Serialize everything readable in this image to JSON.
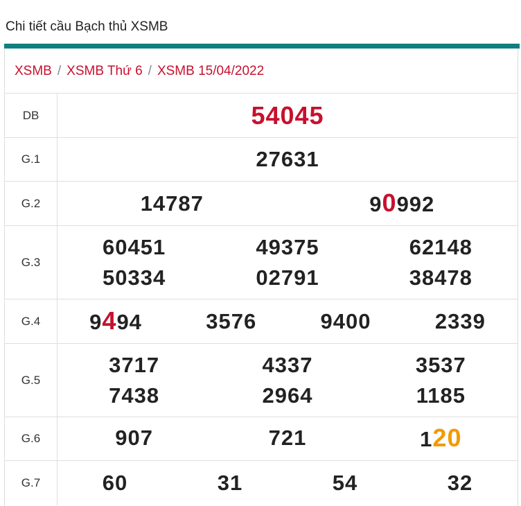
{
  "page_title": "Chi tiết cầu Bạch thủ XSMB",
  "breadcrumb": {
    "items": [
      "XSMB",
      "XSMB Thứ 6",
      "XSMB 15/04/2022"
    ],
    "separator": "/"
  },
  "colors": {
    "accent_bar": "#0f7f7f",
    "highlight_red": "#c8102e",
    "highlight_orange": "#f29a00"
  },
  "prizes": {
    "db": {
      "label": "DB",
      "numbers": [
        "54045"
      ]
    },
    "g1": {
      "label": "G.1",
      "numbers": [
        "27631"
      ]
    },
    "g2": {
      "label": "G.2",
      "numbers": [
        "14787",
        "90992"
      ],
      "n2": {
        "pre": "9",
        "hl": "0",
        "post": "992"
      }
    },
    "g3": {
      "label": "G.3",
      "numbers": [
        "60451",
        "49375",
        "62148",
        "50334",
        "02791",
        "38478"
      ]
    },
    "g4": {
      "label": "G.4",
      "numbers": [
        "9494",
        "3576",
        "9400",
        "2339"
      ],
      "n1": {
        "pre": "9",
        "hl": "4",
        "post": "94"
      }
    },
    "g5": {
      "label": "G.5",
      "numbers": [
        "3717",
        "4337",
        "3537",
        "7438",
        "2964",
        "1185"
      ]
    },
    "g6": {
      "label": "G.6",
      "numbers": [
        "907",
        "721",
        "120"
      ],
      "n3": {
        "pre": "1",
        "hl": "20",
        "post": ""
      }
    },
    "g7": {
      "label": "G.7",
      "numbers": [
        "60",
        "31",
        "54",
        "32"
      ]
    }
  }
}
